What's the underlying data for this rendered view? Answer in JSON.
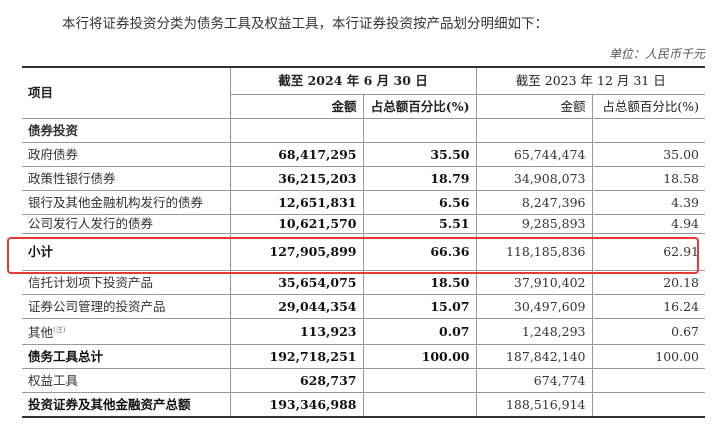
{
  "intro_text": "本行将证券投资分类为债务工具及权益工具，本行证券投资按产品划分明细如下：",
  "unit_text": "单位：人民币千元",
  "colors": {
    "highlight_border": "#e53935"
  },
  "table": {
    "header": {
      "item_label": "项目",
      "period_current": "截至 2024 年 6 月 30 日",
      "period_prior": "截至 2023 年 12 月 31 日",
      "amount_label_current": "金额",
      "pct_label_current": "占总额百分比(%)",
      "amount_label_prior": "金额",
      "pct_label_prior": "占总额百分比(%)"
    },
    "section_debt": "债券投资",
    "rows": [
      {
        "label": "政府债券",
        "amt_2024": "68,417,295",
        "pct_2024": "35.50",
        "amt_2023": "65,744,474",
        "pct_2023": "35.00"
      },
      {
        "label": "政策性银行债券",
        "amt_2024": "36,215,203",
        "pct_2024": "18.79",
        "amt_2023": "34,908,073",
        "pct_2023": "18.58"
      },
      {
        "label": "银行及其他金融机构发行的债券",
        "amt_2024": "12,651,831",
        "pct_2024": "6.56",
        "amt_2023": "8,247,396",
        "pct_2023": "4.39"
      },
      {
        "label": "公司发行人发行的债券",
        "amt_2024": "10,621,570",
        "pct_2024": "5.51",
        "amt_2023": "9,285,893",
        "pct_2023": "4.94"
      },
      {
        "label": "小计",
        "amt_2024": "127,905,899",
        "pct_2024": "66.36",
        "amt_2023": "118,185,836",
        "pct_2023": "62.91"
      },
      {
        "label": "信托计划项下投资产品",
        "amt_2024": "35,654,075",
        "pct_2024": "18.50",
        "amt_2023": "37,910,402",
        "pct_2023": "20.18"
      },
      {
        "label": "证券公司管理的投资产品",
        "amt_2024": "29,044,354",
        "pct_2024": "15.07",
        "amt_2023": "30,497,609",
        "pct_2023": "16.24"
      },
      {
        "label": "其他",
        "note": "(注)",
        "amt_2024": "113,923",
        "pct_2024": "0.07",
        "amt_2023": "1,248,293",
        "pct_2023": "0.67"
      },
      {
        "label": "债务工具总计",
        "amt_2024": "192,718,251",
        "pct_2024": "100.00",
        "amt_2023": "187,842,140",
        "pct_2023": "100.00"
      },
      {
        "label": "权益工具",
        "amt_2024": "628,737",
        "pct_2024": "",
        "amt_2023": "674,774",
        "pct_2023": ""
      },
      {
        "label": "投资证券及其他金融资产总额",
        "amt_2024": "193,346,988",
        "pct_2024": "",
        "amt_2023": "188,516,914",
        "pct_2023": ""
      }
    ]
  }
}
